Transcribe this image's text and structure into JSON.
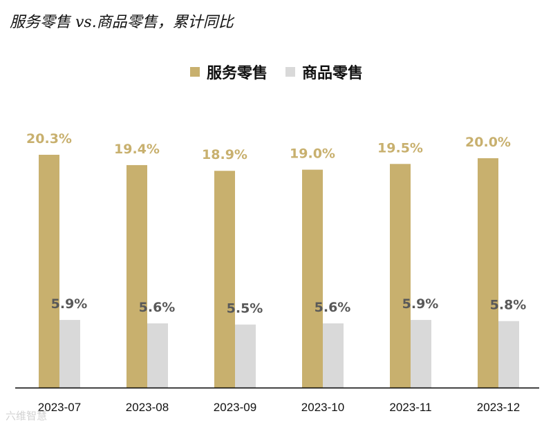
{
  "title": "服务零售 vs.商品零售，累计同比",
  "watermark": "六维智慧",
  "colors": {
    "service": "#c8b06e",
    "goods": "#d9d9d9",
    "service_label": "#c8b06e",
    "goods_label": "#595959",
    "axis": "#000000",
    "tick_label": "#111111"
  },
  "legend": [
    {
      "label": "服务零售",
      "color": "#c8b06e"
    },
    {
      "label": "商品零售",
      "color": "#d9d9d9"
    }
  ],
  "chart_data": {
    "type": "bar",
    "title": "服务零售 vs.商品零售，累计同比",
    "categories": [
      "2023-07",
      "2023-08",
      "2023-09",
      "2023-10",
      "2023-11",
      "2023-12"
    ],
    "series": [
      {
        "name": "服务零售",
        "values": [
          20.3,
          19.4,
          18.9,
          19.0,
          19.5,
          20.0
        ],
        "labels": [
          "20.3%",
          "19.4%",
          "18.9%",
          "19.0%",
          "19.5%",
          "20.0%"
        ]
      },
      {
        "name": "商品零售",
        "values": [
          5.9,
          5.6,
          5.5,
          5.6,
          5.9,
          5.8
        ],
        "labels": [
          "5.9%",
          "5.6%",
          "5.5%",
          "5.6%",
          "5.9%",
          "5.8%"
        ]
      }
    ],
    "ylim": [
      0,
      20.3
    ],
    "grid": false,
    "legend_position": "top-center",
    "xlabel": "",
    "ylabel": ""
  }
}
